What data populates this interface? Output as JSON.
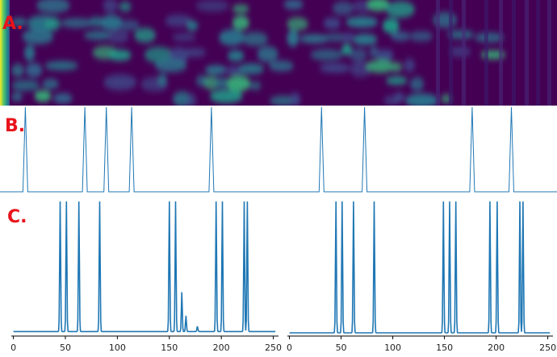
{
  "colors": {
    "line": "#1f77b4",
    "label": "#e8141c",
    "axis": "#000000"
  },
  "chart_data": [
    {
      "name": "A",
      "type": "heatmap",
      "label": "A.",
      "colormap": "viridis",
      "x_range": [
        0,
        255
      ],
      "rows": 7
    },
    {
      "name": "B",
      "type": "line",
      "label": "B.",
      "x_range": [
        0,
        255
      ],
      "peak_positions": [
        20,
        67,
        84,
        104,
        167,
        254,
        288,
        373,
        404
      ],
      "peak_height": 1.0,
      "baseline": 0.0
    },
    {
      "name": "C",
      "type": "line",
      "label": "C.",
      "subplots": [
        {
          "name": "left",
          "xlim": [
            -2,
            255
          ],
          "xticks": [
            0,
            50,
            100,
            150,
            200,
            250
          ],
          "xtick_labels": [
            "0",
            "50",
            "100",
            "150",
            "200",
            "250"
          ],
          "peaks": [
            {
              "x": 45,
              "y": 1.0
            },
            {
              "x": 51,
              "y": 1.0
            },
            {
              "x": 63,
              "y": 1.0
            },
            {
              "x": 83,
              "y": 1.0
            },
            {
              "x": 150,
              "y": 1.0
            },
            {
              "x": 156,
              "y": 1.0
            },
            {
              "x": 162,
              "y": 0.3
            },
            {
              "x": 166,
              "y": 0.12
            },
            {
              "x": 177,
              "y": 0.04
            },
            {
              "x": 195,
              "y": 1.0
            },
            {
              "x": 201,
              "y": 1.0
            },
            {
              "x": 222,
              "y": 1.0
            },
            {
              "x": 225,
              "y": 1.0
            }
          ],
          "baseline": 0.01
        },
        {
          "name": "right",
          "xlim": [
            -2,
            255
          ],
          "xticks": [
            0,
            50,
            100,
            150,
            200,
            250
          ],
          "xtick_labels": [
            "0",
            "50",
            "100",
            "150",
            "200",
            "250"
          ],
          "peaks": [
            {
              "x": 45,
              "y": 1.0
            },
            {
              "x": 51,
              "y": 1.0
            },
            {
              "x": 62,
              "y": 1.0
            },
            {
              "x": 82,
              "y": 1.0
            },
            {
              "x": 149,
              "y": 1.0
            },
            {
              "x": 155,
              "y": 1.0
            },
            {
              "x": 161,
              "y": 1.0
            },
            {
              "x": 194,
              "y": 1.0
            },
            {
              "x": 201,
              "y": 1.0
            },
            {
              "x": 223,
              "y": 1.0
            },
            {
              "x": 226,
              "y": 1.0
            }
          ],
          "baseline": 0.0
        }
      ]
    }
  ]
}
